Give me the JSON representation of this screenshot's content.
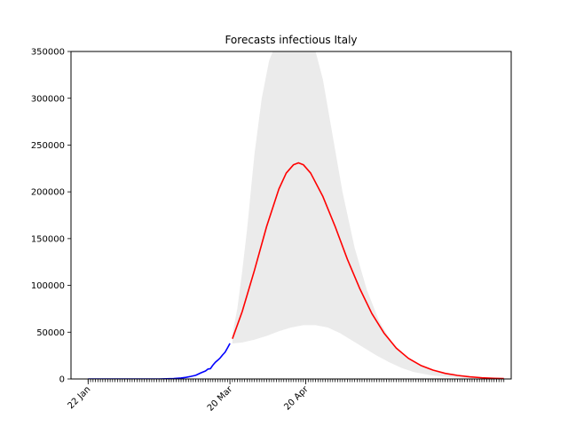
{
  "chart_data": {
    "type": "line",
    "title": "Forecasts infectious Italy",
    "xlabel": "",
    "ylabel": "",
    "xlim": [
      "2020-01-15",
      "2020-07-13"
    ],
    "ylim": [
      0,
      350000
    ],
    "grid": false,
    "legend": "none",
    "x_tick_labels": [
      {
        "date": "2020-01-22",
        "label": "22 Jan"
      },
      {
        "date": "2020-03-20",
        "label": "20 Mar"
      },
      {
        "date": "2020-04-20",
        "label": "20 Apr"
      }
    ],
    "y_ticks": [
      0,
      50000,
      100000,
      150000,
      200000,
      250000,
      300000,
      350000
    ],
    "y_tick_labels": [
      "0",
      "50000",
      "100000",
      "150000",
      "200000",
      "250000",
      "300000",
      "350000"
    ],
    "minor_ticks": {
      "start": "2020-01-22",
      "end": "2020-07-10",
      "step_days": 1
    },
    "series": [
      {
        "role": "observed",
        "color": "#0000ff",
        "points": [
          [
            "2020-01-22",
            0
          ],
          [
            "2020-02-01",
            0
          ],
          [
            "2020-02-10",
            0
          ],
          [
            "2020-02-20",
            0
          ],
          [
            "2020-02-23",
            150
          ],
          [
            "2020-02-26",
            400
          ],
          [
            "2020-02-29",
            1000
          ],
          [
            "2020-03-02",
            1700
          ],
          [
            "2020-03-04",
            2700
          ],
          [
            "2020-03-06",
            3900
          ],
          [
            "2020-03-08",
            6400
          ],
          [
            "2020-03-10",
            8500
          ],
          [
            "2020-03-11",
            10600
          ],
          [
            "2020-03-12",
            11000
          ],
          [
            "2020-03-13",
            14700
          ],
          [
            "2020-03-14",
            17800
          ],
          [
            "2020-03-15",
            20000
          ],
          [
            "2020-03-16",
            22500
          ],
          [
            "2020-03-17",
            25700
          ],
          [
            "2020-03-18",
            28600
          ],
          [
            "2020-03-19",
            33200
          ],
          [
            "2020-03-20",
            38000
          ]
        ]
      },
      {
        "role": "forecast",
        "color": "#ff0000",
        "points": [
          [
            "2020-03-21",
            43000
          ],
          [
            "2020-03-25",
            72000
          ],
          [
            "2020-03-30",
            116000
          ],
          [
            "2020-04-04",
            163000
          ],
          [
            "2020-04-09",
            203000
          ],
          [
            "2020-04-12",
            220000
          ],
          [
            "2020-04-15",
            229000
          ],
          [
            "2020-04-17",
            231000
          ],
          [
            "2020-04-19",
            229000
          ],
          [
            "2020-04-22",
            220000
          ],
          [
            "2020-04-27",
            195000
          ],
          [
            "2020-05-02",
            163000
          ],
          [
            "2020-05-07",
            128000
          ],
          [
            "2020-05-12",
            97000
          ],
          [
            "2020-05-17",
            70000
          ],
          [
            "2020-05-22",
            49000
          ],
          [
            "2020-05-27",
            33000
          ],
          [
            "2020-06-01",
            22000
          ],
          [
            "2020-06-06",
            14500
          ],
          [
            "2020-06-11",
            9500
          ],
          [
            "2020-06-16",
            6000
          ],
          [
            "2020-06-21",
            3800
          ],
          [
            "2020-06-26",
            2300
          ],
          [
            "2020-07-01",
            1300
          ],
          [
            "2020-07-06",
            700
          ],
          [
            "2020-07-10",
            400
          ]
        ]
      }
    ],
    "band": {
      "role": "forecast-range",
      "color": "#ebebeb",
      "upper": [
        [
          "2020-03-21",
          48000
        ],
        [
          "2020-03-23",
          75000
        ],
        [
          "2020-03-25",
          115000
        ],
        [
          "2020-03-27",
          160000
        ],
        [
          "2020-03-30",
          240000
        ],
        [
          "2020-04-02",
          300000
        ],
        [
          "2020-04-05",
          340000
        ],
        [
          "2020-04-08",
          360000
        ],
        [
          "2020-04-12",
          380000
        ],
        [
          "2020-04-16",
          390000
        ],
        [
          "2020-04-20",
          380000
        ],
        [
          "2020-04-24",
          350000
        ],
        [
          "2020-04-27",
          320000
        ],
        [
          "2020-05-01",
          260000
        ],
        [
          "2020-05-05",
          200000
        ],
        [
          "2020-05-10",
          140000
        ],
        [
          "2020-05-15",
          95000
        ],
        [
          "2020-05-20",
          62000
        ],
        [
          "2020-05-25",
          40000
        ],
        [
          "2020-05-31",
          24000
        ],
        [
          "2020-06-06",
          14000
        ],
        [
          "2020-06-12",
          8000
        ],
        [
          "2020-06-20",
          4000
        ],
        [
          "2020-06-28",
          2000
        ],
        [
          "2020-07-05",
          900
        ],
        [
          "2020-07-10",
          500
        ]
      ],
      "lower": [
        [
          "2020-03-21",
          38000
        ],
        [
          "2020-03-25",
          39000
        ],
        [
          "2020-03-30",
          42000
        ],
        [
          "2020-04-04",
          46000
        ],
        [
          "2020-04-09",
          51000
        ],
        [
          "2020-04-14",
          55000
        ],
        [
          "2020-04-19",
          57500
        ],
        [
          "2020-04-24",
          57500
        ],
        [
          "2020-04-29",
          55000
        ],
        [
          "2020-05-04",
          49000
        ],
        [
          "2020-05-09",
          41000
        ],
        [
          "2020-05-14",
          33000
        ],
        [
          "2020-05-19",
          25000
        ],
        [
          "2020-05-24",
          18000
        ],
        [
          "2020-05-29",
          12000
        ],
        [
          "2020-06-03",
          7500
        ],
        [
          "2020-06-10",
          4000
        ],
        [
          "2020-06-17",
          2100
        ],
        [
          "2020-06-24",
          1100
        ],
        [
          "2020-07-01",
          600
        ],
        [
          "2020-07-10",
          300
        ]
      ]
    }
  }
}
